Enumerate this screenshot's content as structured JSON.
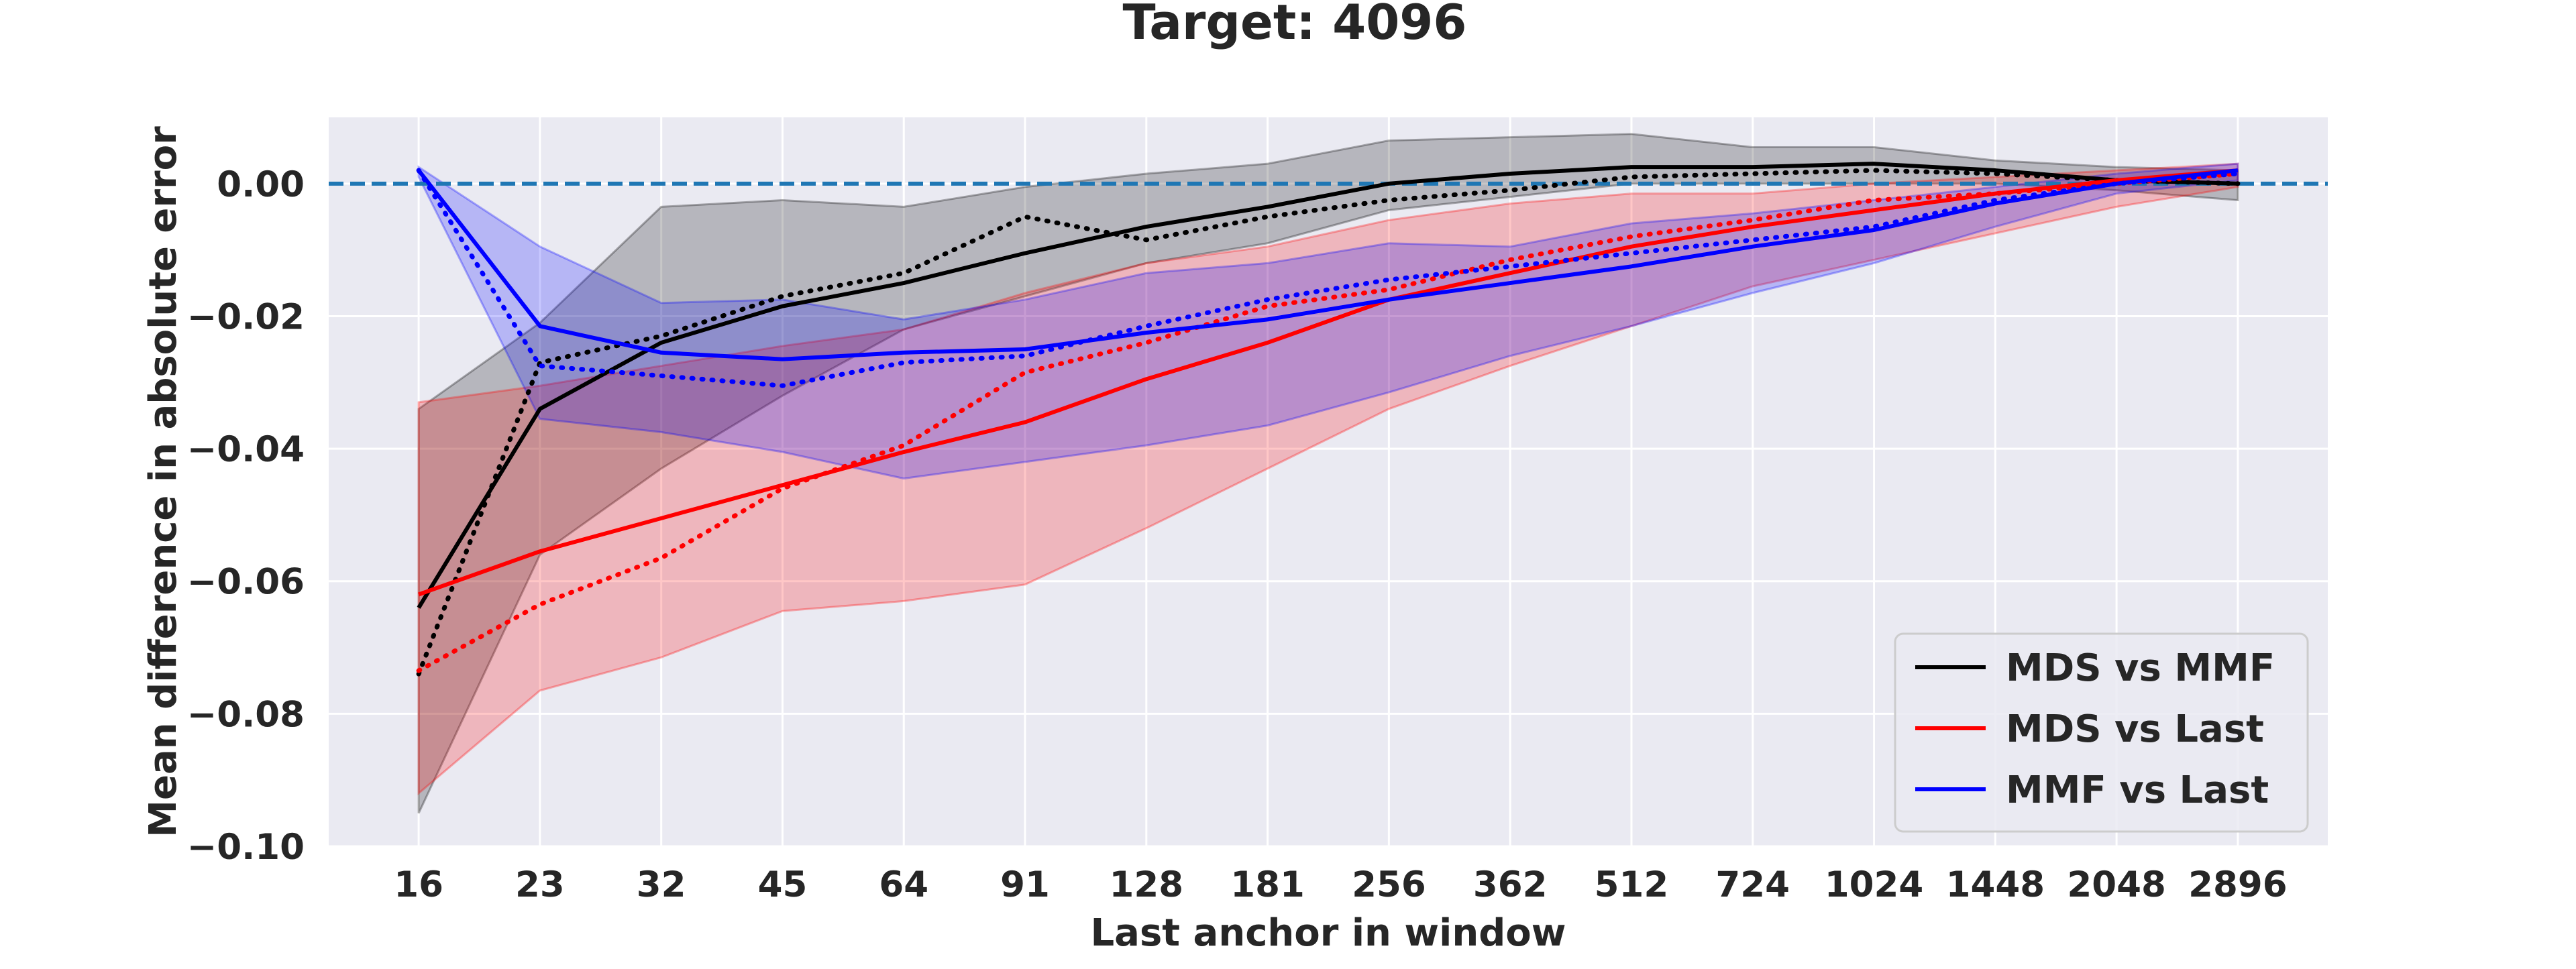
{
  "chart_data": {
    "type": "line",
    "title": "Target: 4096",
    "xlabel": "Last anchor in window",
    "ylabel": "Mean difference in absolute error",
    "x": [
      "16",
      "23",
      "32",
      "45",
      "64",
      "91",
      "128",
      "181",
      "256",
      "362",
      "512",
      "724",
      "1024",
      "1448",
      "2048",
      "2896"
    ],
    "ylim": [
      -0.1,
      0.01
    ],
    "yticks": [
      -0.1,
      -0.08,
      -0.06,
      -0.04,
      -0.02,
      0.0
    ],
    "ytick_labels": [
      "−0.10",
      "−0.08",
      "−0.06",
      "−0.04",
      "−0.02",
      "0.00"
    ],
    "grid": true,
    "reference_line": {
      "y": 0.0,
      "color": "#1f77b4",
      "style": "dashed"
    },
    "legend_position": "lower-right",
    "series": [
      {
        "name": "MDS vs MMF",
        "color": "#000000",
        "values": [
          -0.064,
          -0.034,
          -0.024,
          -0.0185,
          -0.015,
          -0.0105,
          -0.0065,
          -0.0035,
          0.0,
          0.0015,
          0.0025,
          0.0025,
          0.003,
          0.002,
          0.0005,
          0.0
        ],
        "dotted_values": [
          -0.074,
          -0.027,
          -0.023,
          -0.017,
          -0.0135,
          -0.005,
          -0.0085,
          -0.005,
          -0.0025,
          -0.001,
          0.001,
          0.0015,
          0.002,
          0.0015,
          0.0005,
          0.0
        ],
        "band_lower": [
          -0.095,
          -0.056,
          -0.043,
          -0.032,
          -0.022,
          -0.017,
          -0.012,
          -0.009,
          -0.004,
          -0.002,
          0.0,
          0.0,
          0.0,
          0.0,
          -0.001,
          -0.0025
        ],
        "band_upper": [
          -0.034,
          -0.021,
          -0.0035,
          -0.0025,
          -0.0035,
          -0.0005,
          0.0015,
          0.003,
          0.0065,
          0.007,
          0.0075,
          0.0055,
          0.0055,
          0.0035,
          0.0025,
          0.002
        ]
      },
      {
        "name": "MDS vs Last",
        "color": "#ff0000",
        "values": [
          -0.062,
          -0.0555,
          -0.0505,
          -0.0455,
          -0.0405,
          -0.036,
          -0.0295,
          -0.024,
          -0.0175,
          -0.0135,
          -0.0095,
          -0.0065,
          -0.004,
          -0.0015,
          0.0005,
          0.002
        ],
        "dotted_values": [
          -0.0735,
          -0.0635,
          -0.0565,
          -0.046,
          -0.0395,
          -0.0285,
          -0.024,
          -0.0185,
          -0.016,
          -0.0115,
          -0.008,
          -0.0055,
          -0.0025,
          -0.0015,
          0.0,
          0.0015
        ],
        "band_lower": [
          -0.092,
          -0.0765,
          -0.0715,
          -0.0645,
          -0.063,
          -0.0605,
          -0.052,
          -0.043,
          -0.034,
          -0.0275,
          -0.0215,
          -0.0155,
          -0.0115,
          -0.0075,
          -0.0035,
          -0.0005
        ],
        "band_upper": [
          -0.033,
          -0.0305,
          -0.0275,
          -0.0245,
          -0.022,
          -0.0165,
          -0.012,
          -0.0095,
          -0.0055,
          -0.003,
          -0.0015,
          -0.0015,
          0.0,
          0.001,
          0.002,
          0.003
        ]
      },
      {
        "name": "MMF vs Last",
        "color": "#0000ff",
        "values": [
          0.002,
          -0.0215,
          -0.0255,
          -0.0265,
          -0.0255,
          -0.025,
          -0.0225,
          -0.0205,
          -0.0175,
          -0.015,
          -0.0125,
          -0.0095,
          -0.007,
          -0.003,
          0.0,
          0.002
        ],
        "dotted_values": [
          0.002,
          -0.0275,
          -0.029,
          -0.0305,
          -0.027,
          -0.026,
          -0.0215,
          -0.0175,
          -0.0145,
          -0.0125,
          -0.0105,
          -0.0085,
          -0.0065,
          -0.0025,
          0.0,
          0.0015
        ],
        "band_lower": [
          0.001,
          -0.0355,
          -0.0375,
          -0.0405,
          -0.0445,
          -0.042,
          -0.0395,
          -0.0365,
          -0.0315,
          -0.026,
          -0.0215,
          -0.0165,
          -0.012,
          -0.0065,
          -0.0015,
          0.0005
        ],
        "band_upper": [
          0.0025,
          -0.0095,
          -0.018,
          -0.0175,
          -0.0205,
          -0.0175,
          -0.0135,
          -0.012,
          -0.009,
          -0.0095,
          -0.006,
          -0.0045,
          -0.0025,
          -0.0005,
          0.0015,
          0.003
        ]
      }
    ]
  }
}
